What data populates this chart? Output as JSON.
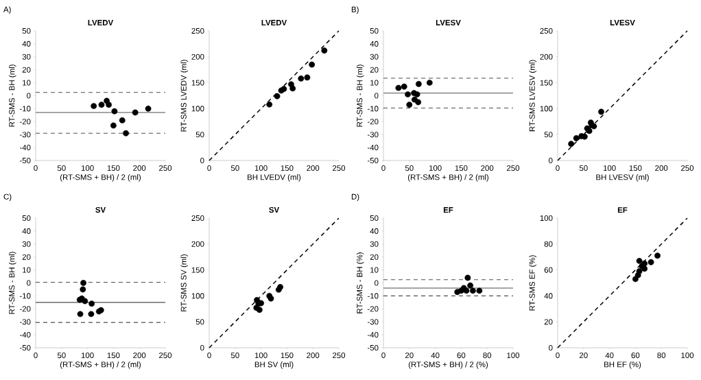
{
  "chart_data": [
    {
      "type": "scatter",
      "title": "LVEDV",
      "xlabel": "(RT-SMS + BH) / 2 (ml)",
      "ylabel": "RT-SMS - BH (ml)",
      "annotations": [
        "A)"
      ],
      "marker": "circle",
      "xlim": [
        0,
        250
      ],
      "ylim": [
        -50,
        50
      ],
      "xticks": [
        0,
        50,
        100,
        150,
        200,
        250
      ],
      "yticks": [
        -50,
        -40,
        -30,
        -20,
        -10,
        0,
        10,
        20,
        30,
        40,
        50
      ],
      "series": [
        {
          "color": "#000000",
          "x": [
            112,
            127,
            137,
            141,
            152,
            150,
            167,
            174,
            192,
            217
          ],
          "values": [
            -8,
            -7,
            -4,
            -7,
            -12,
            -23,
            -19,
            -29,
            -13,
            -10
          ]
        }
      ],
      "ref_lines": [
        {
          "axis": "y",
          "value": -13,
          "color": "#4d4d4d",
          "line_style": "solid"
        },
        {
          "axis": "y",
          "value": 2.5,
          "color": "#4d4d4d",
          "line_style": "dashed"
        },
        {
          "axis": "y",
          "value": -29,
          "color": "#4d4d4d",
          "line_style": "dashed"
        }
      ]
    },
    {
      "type": "scatter",
      "title": "LVEDV",
      "xlabel": "BH LVEDV (ml)",
      "ylabel": "RT-SMS LVEDV (ml)",
      "marker": "circle",
      "xlim": [
        0,
        250
      ],
      "ylim": [
        0,
        250
      ],
      "xticks": [
        0,
        50,
        100,
        150,
        200,
        250
      ],
      "yticks": [
        0,
        50,
        100,
        150,
        200,
        250
      ],
      "series": [
        {
          "color": "#000000",
          "x": [
            116,
            131,
            139,
            144,
            158,
            161,
            177,
            189,
            198,
            222
          ],
          "values": [
            108,
            124,
            135,
            138,
            147,
            139,
            158,
            160,
            185,
            212
          ]
        },
        {
          "type": "line",
          "color": "#000000",
          "line_style": "dashed",
          "marker": "none",
          "x": [
            0,
            250
          ],
          "values": [
            0,
            250
          ]
        }
      ]
    },
    {
      "type": "scatter",
      "title": "LVESV",
      "xlabel": "(RT-SMS + BH) / 2 (ml)",
      "ylabel": "RT-SMS - BH (ml)",
      "annotations": [
        "B)"
      ],
      "marker": "circle",
      "xlim": [
        0,
        250
      ],
      "ylim": [
        -50,
        50
      ],
      "xticks": [
        0,
        50,
        100,
        150,
        200,
        250
      ],
      "yticks": [
        -50,
        -40,
        -30,
        -20,
        -10,
        0,
        10,
        20,
        30,
        40,
        50
      ],
      "series": [
        {
          "color": "#000000",
          "x": [
            29,
            40,
            47,
            50,
            59,
            60,
            65,
            67,
            68,
            89
          ],
          "values": [
            6,
            7,
            1,
            -7,
            2,
            -3,
            1,
            -5,
            9,
            10
          ]
        }
      ],
      "ref_lines": [
        {
          "axis": "y",
          "value": 2,
          "color": "#4d4d4d",
          "line_style": "solid"
        },
        {
          "axis": "y",
          "value": 13.5,
          "color": "#4d4d4d",
          "line_style": "dashed"
        },
        {
          "axis": "y",
          "value": -9.5,
          "color": "#4d4d4d",
          "line_style": "dashed"
        }
      ]
    },
    {
      "type": "scatter",
      "title": "LVESV",
      "xlabel": "BH LVESV (ml)",
      "ylabel": "RT-SMS LVESV (ml)",
      "marker": "circle",
      "xlim": [
        0,
        250
      ],
      "ylim": [
        0,
        250
      ],
      "xticks": [
        0,
        50,
        100,
        150,
        200,
        250
      ],
      "yticks": [
        0,
        50,
        100,
        150,
        200,
        250
      ],
      "series": [
        {
          "color": "#000000",
          "x": [
            26,
            36,
            46,
            52,
            57,
            61,
            64,
            66,
            70,
            84
          ],
          "values": [
            32,
            43,
            47,
            46,
            62,
            57,
            73,
            68,
            66,
            94
          ]
        },
        {
          "type": "line",
          "color": "#000000",
          "line_style": "dashed",
          "marker": "none",
          "x": [
            0,
            250
          ],
          "values": [
            0,
            250
          ]
        }
      ]
    },
    {
      "type": "scatter",
      "title": "SV",
      "xlabel": "(RT-SMS + BH) / 2 (ml)",
      "ylabel": "RT-SMS - BH (ml)",
      "annotations": [
        "C)"
      ],
      "marker": "circle",
      "xlim": [
        0,
        250
      ],
      "ylim": [
        -50,
        50
      ],
      "xticks": [
        0,
        50,
        100,
        150,
        200,
        250
      ],
      "yticks": [
        -50,
        -40,
        -30,
        -20,
        -10,
        0,
        10,
        20,
        30,
        40,
        50
      ],
      "series": [
        {
          "color": "#000000",
          "x": [
            85,
            89,
            92,
            91,
            95,
            86,
            108,
            107,
            122,
            126
          ],
          "values": [
            -13,
            -12,
            0,
            -5,
            -14,
            -24,
            -16,
            -24,
            -22,
            -21
          ]
        }
      ],
      "ref_lines": [
        {
          "axis": "y",
          "value": -15,
          "color": "#4d4d4d",
          "line_style": "solid"
        },
        {
          "axis": "y",
          "value": 0.5,
          "color": "#4d4d4d",
          "line_style": "dashed"
        },
        {
          "axis": "y",
          "value": -30.5,
          "color": "#4d4d4d",
          "line_style": "dashed"
        }
      ]
    },
    {
      "type": "scatter",
      "title": "SV",
      "xlabel": "BH SV (ml)",
      "ylabel": "RT-SMS SV (ml)",
      "marker": "circle",
      "xlim": [
        0,
        250
      ],
      "ylim": [
        0,
        250
      ],
      "xticks": [
        0,
        50,
        100,
        150,
        200,
        250
      ],
      "yticks": [
        0,
        50,
        100,
        150,
        200,
        250
      ],
      "series": [
        {
          "color": "#000000",
          "x": [
            92,
            91,
            97,
            100,
            95,
            116,
            119,
            134,
            137
          ],
          "values": [
            92,
            77,
            73,
            86,
            85,
            100,
            95,
            112,
            117
          ]
        },
        {
          "type": "line",
          "color": "#000000",
          "line_style": "dashed",
          "marker": "none",
          "x": [
            0,
            250
          ],
          "values": [
            0,
            250
          ]
        }
      ]
    },
    {
      "type": "scatter",
      "title": "EF",
      "xlabel": "(RT-SMS + BH) / 2 (%)",
      "ylabel": "RT-SMS - BH (%)",
      "annotations": [
        "D)"
      ],
      "marker": "circle",
      "xlim": [
        0,
        100
      ],
      "ylim": [
        -50,
        50
      ],
      "xticks": [
        0,
        20,
        40,
        60,
        80,
        100
      ],
      "yticks": [
        -50,
        -40,
        -30,
        -20,
        -10,
        0,
        10,
        20,
        30,
        40,
        50
      ],
      "series": [
        {
          "color": "#000000",
          "x": [
            57,
            60,
            62,
            64,
            65,
            67,
            69,
            74
          ],
          "values": [
            -7,
            -6,
            -4,
            -6,
            4,
            -2,
            -6,
            -6
          ]
        }
      ],
      "ref_lines": [
        {
          "axis": "y",
          "value": -4,
          "color": "#4d4d4d",
          "line_style": "solid"
        },
        {
          "axis": "y",
          "value": 2.5,
          "color": "#4d4d4d",
          "line_style": "dashed"
        },
        {
          "axis": "y",
          "value": -10,
          "color": "#4d4d4d",
          "line_style": "dashed"
        }
      ]
    },
    {
      "type": "scatter",
      "title": "EF",
      "xlabel": "BH EF (%)",
      "ylabel": "RT-SMS EF (%)",
      "marker": "circle",
      "xlim": [
        0,
        100
      ],
      "ylim": [
        0,
        100
      ],
      "xticks": [
        0,
        20,
        40,
        60,
        80,
        100
      ],
      "yticks": [
        0,
        20,
        40,
        60,
        80,
        100
      ],
      "series": [
        {
          "color": "#000000",
          "x": [
            60,
            62,
            63,
            63,
            65,
            67,
            67,
            72,
            77
          ],
          "values": [
            53,
            56,
            59,
            67,
            63,
            61,
            65,
            66,
            71
          ]
        },
        {
          "type": "line",
          "color": "#000000",
          "line_style": "dashed",
          "marker": "none",
          "x": [
            0,
            100
          ],
          "values": [
            0,
            100
          ]
        }
      ]
    }
  ]
}
